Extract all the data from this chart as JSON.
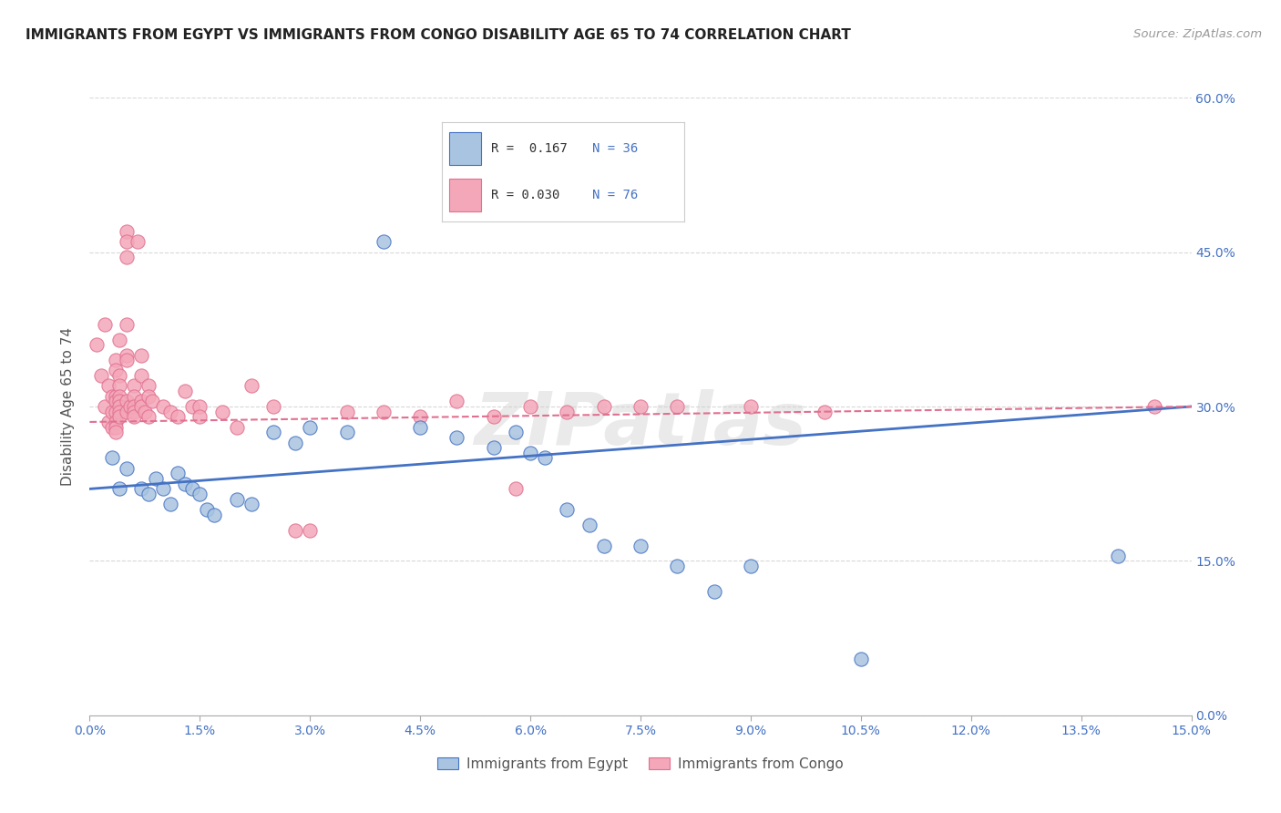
{
  "title": "IMMIGRANTS FROM EGYPT VS IMMIGRANTS FROM CONGO DISABILITY AGE 65 TO 74 CORRELATION CHART",
  "source": "Source: ZipAtlas.com",
  "ylabel_label": "Disability Age 65 to 74",
  "legend_label_blue": "Immigrants from Egypt",
  "legend_label_pink": "Immigrants from Congo",
  "r_blue": "0.167",
  "n_blue": "36",
  "r_pink": "0.030",
  "n_pink": "76",
  "watermark": "ZIPatlas",
  "blue_color": "#a8c4e0",
  "pink_color": "#f4a7b9",
  "blue_line_color": "#4472c4",
  "pink_line_color": "#e07090",
  "blue_scatter": [
    [
      0.3,
      25.0
    ],
    [
      0.4,
      22.0
    ],
    [
      0.5,
      24.0
    ],
    [
      0.7,
      22.0
    ],
    [
      0.8,
      21.5
    ],
    [
      0.9,
      23.0
    ],
    [
      1.0,
      22.0
    ],
    [
      1.1,
      20.5
    ],
    [
      1.2,
      23.5
    ],
    [
      1.3,
      22.5
    ],
    [
      1.4,
      22.0
    ],
    [
      1.5,
      21.5
    ],
    [
      1.6,
      20.0
    ],
    [
      1.7,
      19.5
    ],
    [
      2.0,
      21.0
    ],
    [
      2.2,
      20.5
    ],
    [
      2.5,
      27.5
    ],
    [
      2.8,
      26.5
    ],
    [
      3.0,
      28.0
    ],
    [
      3.5,
      27.5
    ],
    [
      4.0,
      46.0
    ],
    [
      4.5,
      28.0
    ],
    [
      5.0,
      27.0
    ],
    [
      5.5,
      26.0
    ],
    [
      5.8,
      27.5
    ],
    [
      6.0,
      25.5
    ],
    [
      6.2,
      25.0
    ],
    [
      6.5,
      20.0
    ],
    [
      6.8,
      18.5
    ],
    [
      7.0,
      16.5
    ],
    [
      7.5,
      16.5
    ],
    [
      8.0,
      14.5
    ],
    [
      8.5,
      12.0
    ],
    [
      9.0,
      14.5
    ],
    [
      10.5,
      5.5
    ],
    [
      14.0,
      15.5
    ]
  ],
  "pink_scatter": [
    [
      0.1,
      36.0
    ],
    [
      0.15,
      33.0
    ],
    [
      0.2,
      38.0
    ],
    [
      0.2,
      30.0
    ],
    [
      0.25,
      32.0
    ],
    [
      0.25,
      28.5
    ],
    [
      0.3,
      31.0
    ],
    [
      0.3,
      29.5
    ],
    [
      0.3,
      28.0
    ],
    [
      0.35,
      34.5
    ],
    [
      0.35,
      33.5
    ],
    [
      0.35,
      31.0
    ],
    [
      0.35,
      30.5
    ],
    [
      0.35,
      29.5
    ],
    [
      0.35,
      28.5
    ],
    [
      0.35,
      28.0
    ],
    [
      0.35,
      27.5
    ],
    [
      0.4,
      36.5
    ],
    [
      0.4,
      33.0
    ],
    [
      0.4,
      32.0
    ],
    [
      0.4,
      31.0
    ],
    [
      0.4,
      30.5
    ],
    [
      0.4,
      30.0
    ],
    [
      0.4,
      29.5
    ],
    [
      0.4,
      29.0
    ],
    [
      0.5,
      47.0
    ],
    [
      0.5,
      46.0
    ],
    [
      0.5,
      44.5
    ],
    [
      0.5,
      38.0
    ],
    [
      0.5,
      35.0
    ],
    [
      0.5,
      34.5
    ],
    [
      0.5,
      30.5
    ],
    [
      0.5,
      29.5
    ],
    [
      0.55,
      30.0
    ],
    [
      0.6,
      32.0
    ],
    [
      0.6,
      31.0
    ],
    [
      0.6,
      30.0
    ],
    [
      0.6,
      29.5
    ],
    [
      0.6,
      29.0
    ],
    [
      0.65,
      46.0
    ],
    [
      0.7,
      35.0
    ],
    [
      0.7,
      33.0
    ],
    [
      0.7,
      30.5
    ],
    [
      0.7,
      30.0
    ],
    [
      0.75,
      29.5
    ],
    [
      0.8,
      32.0
    ],
    [
      0.8,
      31.0
    ],
    [
      0.8,
      29.0
    ],
    [
      0.85,
      30.5
    ],
    [
      1.0,
      30.0
    ],
    [
      1.1,
      29.5
    ],
    [
      1.2,
      29.0
    ],
    [
      1.3,
      31.5
    ],
    [
      1.4,
      30.0
    ],
    [
      1.5,
      30.0
    ],
    [
      1.5,
      29.0
    ],
    [
      1.8,
      29.5
    ],
    [
      2.0,
      28.0
    ],
    [
      2.2,
      32.0
    ],
    [
      2.5,
      30.0
    ],
    [
      2.8,
      18.0
    ],
    [
      3.0,
      18.0
    ],
    [
      3.5,
      29.5
    ],
    [
      4.0,
      29.5
    ],
    [
      4.5,
      29.0
    ],
    [
      5.0,
      30.5
    ],
    [
      5.5,
      29.0
    ],
    [
      5.8,
      22.0
    ],
    [
      6.0,
      30.0
    ],
    [
      6.5,
      29.5
    ],
    [
      7.0,
      30.0
    ],
    [
      7.5,
      30.0
    ],
    [
      8.0,
      30.0
    ],
    [
      9.0,
      30.0
    ],
    [
      10.0,
      29.5
    ],
    [
      14.5,
      30.0
    ]
  ],
  "xmin": 0.0,
  "xmax": 15.0,
  "ymin": 0.0,
  "ymax": 60.0,
  "yticks": [
    0.0,
    15.0,
    30.0,
    45.0,
    60.0
  ],
  "xticks": [
    0.0,
    1.5,
    3.0,
    4.5,
    6.0,
    7.5,
    9.0,
    10.5,
    12.0,
    13.5,
    15.0
  ],
  "grid_color": "#d8d8d8",
  "background_color": "#ffffff"
}
